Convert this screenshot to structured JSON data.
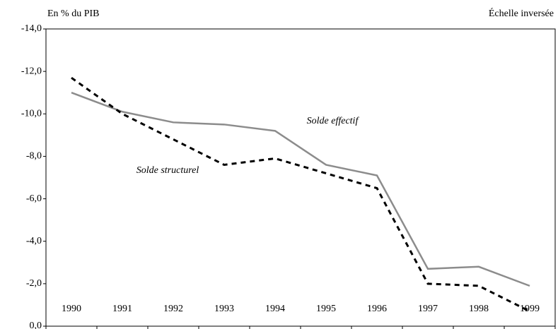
{
  "chart_data": {
    "type": "line",
    "y_label": "En % du PIB",
    "note": "Échelle inversée",
    "categories": [
      "1990",
      "1991",
      "1992",
      "1993",
      "1994",
      "1995",
      "1996",
      "1997",
      "1998",
      "1999"
    ],
    "series": [
      {
        "name": "Solde effectif",
        "color": "#8c8c8c",
        "dashed": false,
        "values": [
          -11.0,
          -10.1,
          -9.6,
          -9.5,
          -9.2,
          -7.6,
          -7.1,
          -2.7,
          -2.8,
          -1.9
        ]
      },
      {
        "name": "Solde structurel",
        "color": "#000000",
        "dashed": true,
        "values": [
          -11.7,
          -10.0,
          -8.8,
          -7.6,
          -7.9,
          -7.2,
          -6.5,
          -2.0,
          -1.9,
          -0.7
        ]
      }
    ],
    "ylim": [
      0,
      -14
    ],
    "yticks": [
      {
        "value": -14,
        "label": "-14,0"
      },
      {
        "value": -12,
        "label": "-12,0"
      },
      {
        "value": -10,
        "label": "-10,0"
      },
      {
        "value": -8,
        "label": "-8,0"
      },
      {
        "value": -6,
        "label": "-6,0"
      },
      {
        "value": -4,
        "label": "-4,0"
      },
      {
        "value": -2,
        "label": "-2,0"
      },
      {
        "value": 0,
        "label": "0,0"
      }
    ]
  }
}
